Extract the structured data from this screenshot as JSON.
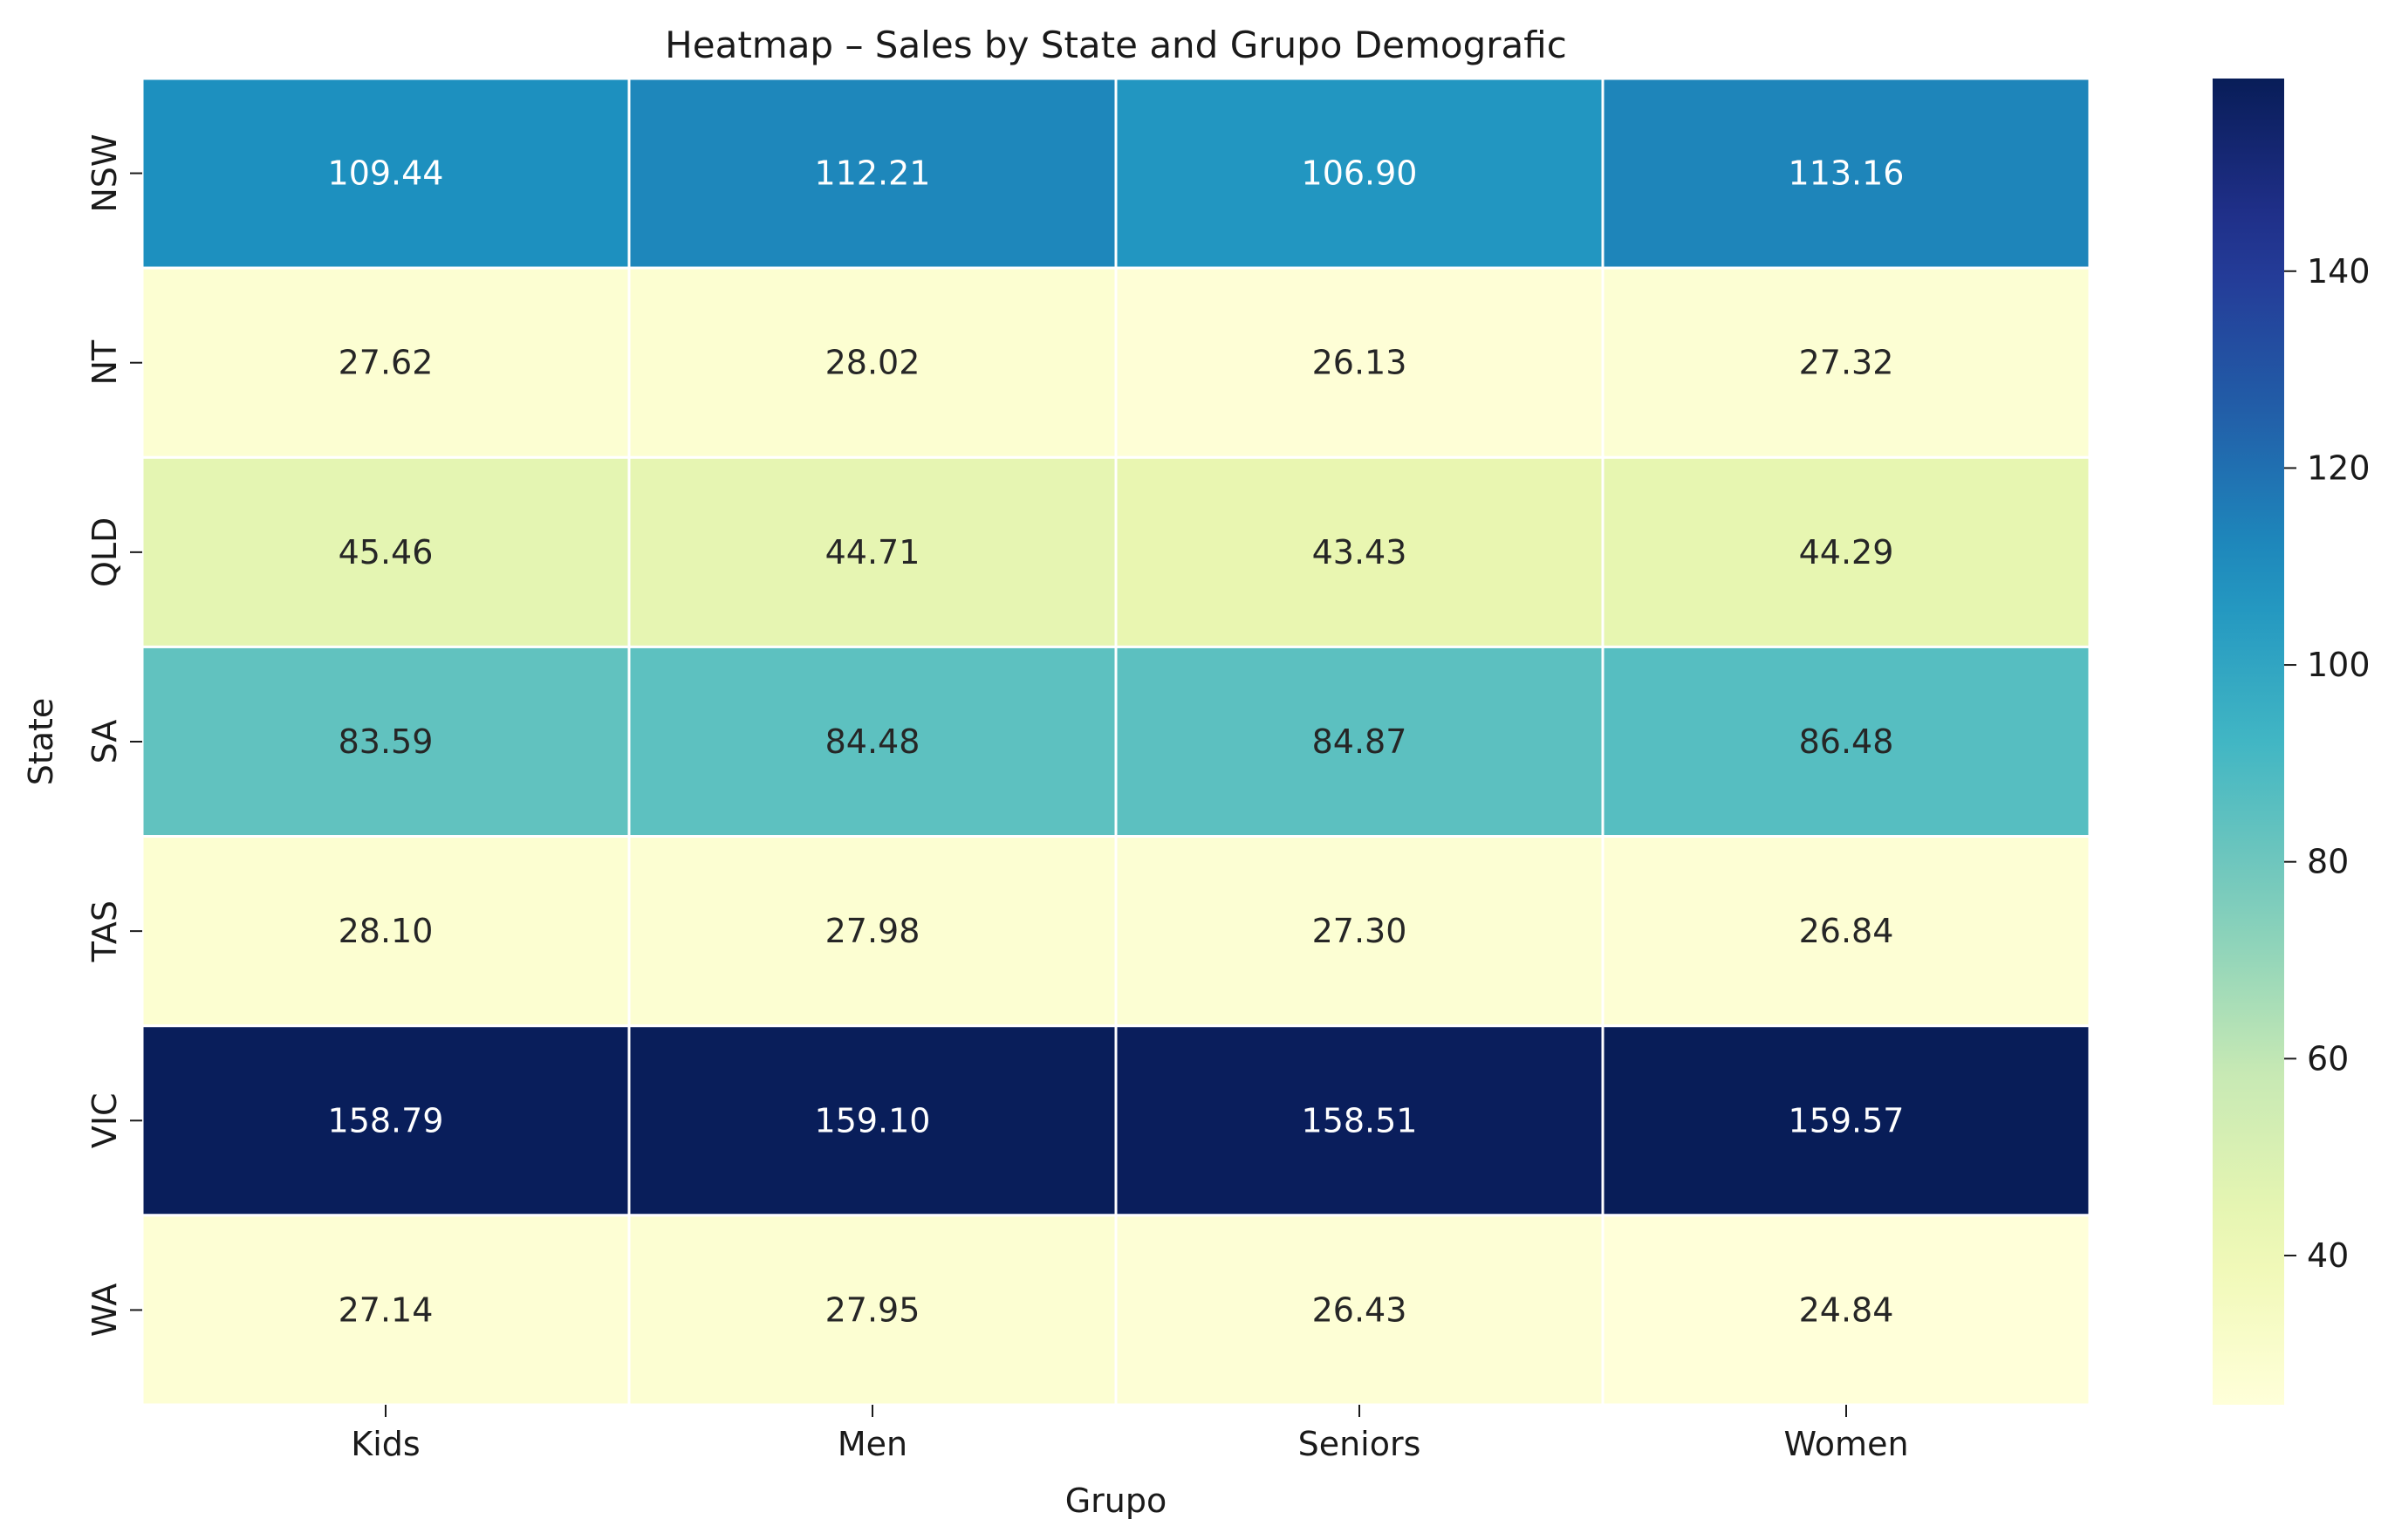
{
  "chart_data": {
    "type": "heatmap",
    "title": "Heatmap – Sales by State and Grupo Demografic",
    "xlabel": "Grupo",
    "ylabel": "State",
    "x": [
      "Kids",
      "Men",
      "Seniors",
      "Women"
    ],
    "y": [
      "NSW",
      "NT",
      "QLD",
      "SA",
      "TAS",
      "VIC",
      "WA"
    ],
    "values": [
      [
        109.44,
        112.21,
        106.9,
        113.16
      ],
      [
        27.62,
        28.02,
        26.13,
        27.32
      ],
      [
        45.46,
        44.71,
        43.43,
        44.29
      ],
      [
        83.59,
        84.48,
        84.87,
        86.48
      ],
      [
        28.1,
        27.98,
        27.3,
        26.84
      ],
      [
        158.79,
        159.1,
        158.51,
        159.57
      ],
      [
        27.14,
        27.95,
        26.43,
        24.84
      ]
    ],
    "value_format": "%.2f",
    "colormap": "YlGnBu",
    "colorbar": {
      "range": [
        24.84,
        159.57
      ],
      "ticks": [
        40,
        60,
        80,
        100,
        120,
        140
      ]
    },
    "grid": false,
    "cell_border_color": "#ffffff"
  }
}
